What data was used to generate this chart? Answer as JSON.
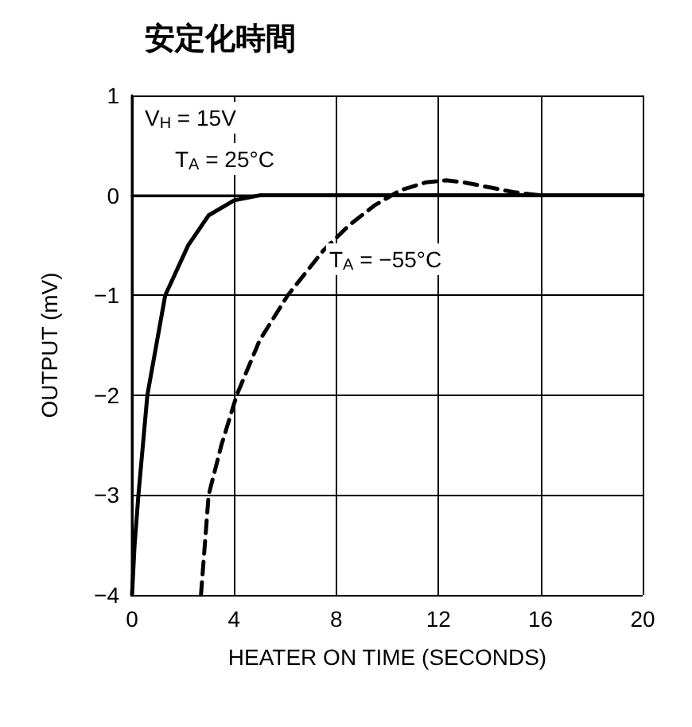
{
  "chart_data": {
    "type": "line",
    "title": "安定化時間",
    "xlabel": "HEATER ON TIME (SECONDS)",
    "ylabel": "OUTPUT (mV)",
    "xlim": [
      0,
      20
    ],
    "xticks": [
      0,
      4,
      8,
      12,
      16,
      20
    ],
    "ylim": [
      -4,
      1
    ],
    "yticks": [
      -4,
      -3,
      -2,
      -1,
      0,
      1
    ],
    "grid": true,
    "marker": "none",
    "annotations": [
      "V$_{H}$ = 15V",
      "T$_{A}$ = 25°C",
      "T$_{A}$ = −55°C"
    ],
    "series": [
      {
        "color": "#000000",
        "line_style": "solid",
        "x": [
          0,
          0.1,
          0.25,
          0.6,
          1.3,
          2.2,
          3,
          4,
          5,
          8,
          12,
          16,
          20
        ],
        "values": [
          -4,
          -3.5,
          -3,
          -2,
          -1,
          -0.5,
          -0.2,
          -0.05,
          0,
          0,
          0,
          0,
          0
        ]
      },
      {
        "color": "#000000",
        "line_style": "dashed",
        "x": [
          2.7,
          3,
          3.5,
          4.1,
          5,
          6.1,
          7.5,
          8.5,
          9.5,
          10.5,
          11.5,
          12.3,
          13,
          14,
          15,
          16,
          18,
          20
        ],
        "values": [
          -4,
          -3,
          -2.5,
          -2,
          -1.45,
          -1,
          -0.55,
          -0.3,
          -0.1,
          0.05,
          0.13,
          0.15,
          0.13,
          0.08,
          0.03,
          0,
          0,
          0
        ]
      }
    ]
  }
}
